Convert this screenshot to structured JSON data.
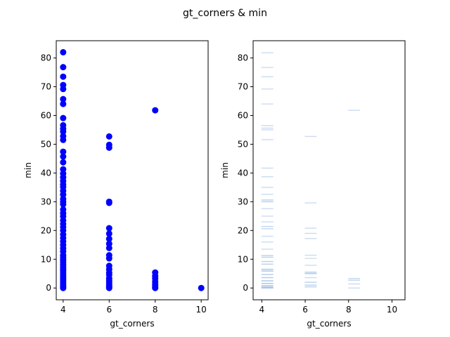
{
  "figure": {
    "suptitle": "gt_corners & min"
  },
  "chart_data": [
    {
      "type": "scatter",
      "xlabel": "gt_corners",
      "ylabel": "min",
      "xlim": [
        3.7,
        10.3
      ],
      "ylim": [
        -4.1,
        86.0
      ],
      "xticks": [
        4,
        6,
        8,
        10
      ],
      "yticks": [
        0,
        10,
        20,
        30,
        40,
        50,
        60,
        70,
        80
      ],
      "marker_color": "#0000ff",
      "points": [
        [
          4,
          82
        ],
        [
          4,
          76.8
        ],
        [
          4,
          73.5
        ],
        [
          4,
          70.6
        ],
        [
          4,
          69.2
        ],
        [
          4,
          65.7
        ],
        [
          4,
          64
        ],
        [
          4,
          59.1
        ],
        [
          4,
          56.6
        ],
        [
          4,
          55.4
        ],
        [
          4,
          54.4
        ],
        [
          4,
          52.8
        ],
        [
          4,
          51.5
        ],
        [
          4,
          47.4
        ],
        [
          4,
          45.7
        ],
        [
          4,
          43.7
        ],
        [
          4,
          41.3
        ],
        [
          4,
          39.8
        ],
        [
          4,
          38.5
        ],
        [
          4,
          37.2
        ],
        [
          4,
          36
        ],
        [
          4,
          35.1
        ],
        [
          4,
          33.8
        ],
        [
          4,
          32.5
        ],
        [
          4,
          31
        ],
        [
          4,
          30
        ],
        [
          4,
          29.1
        ],
        [
          4,
          27.3
        ],
        [
          4,
          26
        ],
        [
          4,
          24.9
        ],
        [
          4,
          23.5
        ],
        [
          4,
          22.3
        ],
        [
          4,
          21.2
        ],
        [
          4,
          20
        ],
        [
          4,
          18.6
        ],
        [
          4,
          17.4
        ],
        [
          4,
          16.2
        ],
        [
          4,
          15
        ],
        [
          4,
          13.8
        ],
        [
          4,
          12.7
        ],
        [
          4,
          11.4
        ],
        [
          4,
          10.6
        ],
        [
          4,
          9.8
        ],
        [
          4,
          9
        ],
        [
          4,
          8.2
        ],
        [
          4,
          7.4
        ],
        [
          4,
          6.6
        ],
        [
          4,
          5.9
        ],
        [
          4,
          5.2
        ],
        [
          4,
          4.5
        ],
        [
          4,
          3.8
        ],
        [
          4,
          3.1
        ],
        [
          4,
          2.5
        ],
        [
          4,
          1.9
        ],
        [
          4,
          1.3
        ],
        [
          4,
          0.8
        ],
        [
          4,
          0.3
        ],
        [
          4,
          0
        ],
        [
          6,
          52.7
        ],
        [
          6,
          49.8
        ],
        [
          6,
          48.8
        ],
        [
          6,
          30
        ],
        [
          6,
          29.6
        ],
        [
          6,
          20.8
        ],
        [
          6,
          18.9
        ],
        [
          6,
          17.1
        ],
        [
          6,
          15.4
        ],
        [
          6,
          13.9
        ],
        [
          6,
          11.4
        ],
        [
          6,
          10.3
        ],
        [
          6,
          7.7
        ],
        [
          6,
          6.5
        ],
        [
          6,
          5.3
        ],
        [
          6,
          4.6
        ],
        [
          6,
          3.4
        ],
        [
          6,
          2.6
        ],
        [
          6,
          1.9
        ],
        [
          6,
          1.2
        ],
        [
          6,
          0.7
        ],
        [
          6,
          0.3
        ],
        [
          6,
          0
        ],
        [
          8,
          61.8
        ],
        [
          8,
          5.4
        ],
        [
          8,
          4.2
        ],
        [
          8,
          3.3
        ],
        [
          8,
          2.2
        ],
        [
          8,
          1.4
        ],
        [
          8,
          0.8
        ],
        [
          8,
          0.3
        ],
        [
          8,
          0
        ],
        [
          10,
          0
        ]
      ]
    },
    {
      "type": "heatmap",
      "xlabel": "gt_corners",
      "ylabel": "min",
      "xlim": [
        3.6,
        10.6
      ],
      "ylim": [
        -4.1,
        86.0
      ],
      "xticks": [
        4,
        6,
        8,
        10
      ],
      "yticks": [
        0,
        10,
        20,
        30,
        40,
        50,
        60,
        70,
        80
      ],
      "bin_color": "#a8c4e8",
      "bins": [
        {
          "x": 4,
          "y": 81.8,
          "a": 0.6
        },
        {
          "x": 4,
          "y": 76.7,
          "a": 0.6
        },
        {
          "x": 4,
          "y": 73.5,
          "a": 0.6
        },
        {
          "x": 4,
          "y": 69.2,
          "a": 0.6
        },
        {
          "x": 4,
          "y": 64.0,
          "a": 0.6
        },
        {
          "x": 4,
          "y": 56.5,
          "a": 0.6
        },
        {
          "x": 4,
          "y": 55.6,
          "a": 0.6
        },
        {
          "x": 4,
          "y": 55.0,
          "a": 0.6
        },
        {
          "x": 4,
          "y": 51.6,
          "a": 0.6
        },
        {
          "x": 4,
          "y": 41.7,
          "a": 0.6
        },
        {
          "x": 4,
          "y": 38.7,
          "a": 0.6
        },
        {
          "x": 4,
          "y": 35.0,
          "a": 0.6
        },
        {
          "x": 4,
          "y": 32.6,
          "a": 0.6
        },
        {
          "x": 4,
          "y": 30.6,
          "a": 0.8
        },
        {
          "x": 4,
          "y": 30.0,
          "a": 0.8
        },
        {
          "x": 4,
          "y": 27.6,
          "a": 0.6
        },
        {
          "x": 4,
          "y": 25.0,
          "a": 0.6
        },
        {
          "x": 4,
          "y": 23.0,
          "a": 0.6
        },
        {
          "x": 4,
          "y": 21.4,
          "a": 0.7
        },
        {
          "x": 4,
          "y": 20.6,
          "a": 0.7
        },
        {
          "x": 4,
          "y": 18.0,
          "a": 0.6
        },
        {
          "x": 4,
          "y": 16.0,
          "a": 0.6
        },
        {
          "x": 4,
          "y": 13.5,
          "a": 0.6
        },
        {
          "x": 4,
          "y": 11.3,
          "a": 0.8
        },
        {
          "x": 4,
          "y": 10.7,
          "a": 0.8
        },
        {
          "x": 4,
          "y": 9.2,
          "a": 0.8
        },
        {
          "x": 4,
          "y": 8.3,
          "a": 0.8
        },
        {
          "x": 4,
          "y": 6.5,
          "a": 1.0
        },
        {
          "x": 4,
          "y": 5.9,
          "a": 1.0
        },
        {
          "x": 4,
          "y": 4.7,
          "a": 0.9
        },
        {
          "x": 4,
          "y": 3.6,
          "a": 0.9
        },
        {
          "x": 4,
          "y": 2.5,
          "a": 1.0
        },
        {
          "x": 4,
          "y": 1.6,
          "a": 1.0
        },
        {
          "x": 4,
          "y": 0.8,
          "a": 1.0
        },
        {
          "x": 4,
          "y": 0.3,
          "a": 1.0
        },
        {
          "x": 4,
          "y": 0.0,
          "a": 1.0
        },
        {
          "x": 6,
          "y": 52.7,
          "a": 0.6
        },
        {
          "x": 6,
          "y": 29.6,
          "a": 0.6
        },
        {
          "x": 6,
          "y": 20.8,
          "a": 0.6
        },
        {
          "x": 6,
          "y": 19.0,
          "a": 0.6
        },
        {
          "x": 6,
          "y": 17.2,
          "a": 0.6
        },
        {
          "x": 6,
          "y": 11.4,
          "a": 0.6
        },
        {
          "x": 6,
          "y": 10.3,
          "a": 0.6
        },
        {
          "x": 6,
          "y": 7.9,
          "a": 0.6
        },
        {
          "x": 6,
          "y": 5.5,
          "a": 0.9
        },
        {
          "x": 6,
          "y": 5.0,
          "a": 0.9
        },
        {
          "x": 6,
          "y": 3.6,
          "a": 0.6
        },
        {
          "x": 6,
          "y": 2.0,
          "a": 0.8
        },
        {
          "x": 6,
          "y": 1.0,
          "a": 0.8
        },
        {
          "x": 6,
          "y": 0.4,
          "a": 0.8
        },
        {
          "x": 8,
          "y": 61.8,
          "a": 0.6
        },
        {
          "x": 8,
          "y": 3.3,
          "a": 0.7
        },
        {
          "x": 8,
          "y": 2.7,
          "a": 0.7
        },
        {
          "x": 8,
          "y": 1.4,
          "a": 0.6
        },
        {
          "x": 8,
          "y": 0.0,
          "a": 0.6
        }
      ]
    }
  ]
}
